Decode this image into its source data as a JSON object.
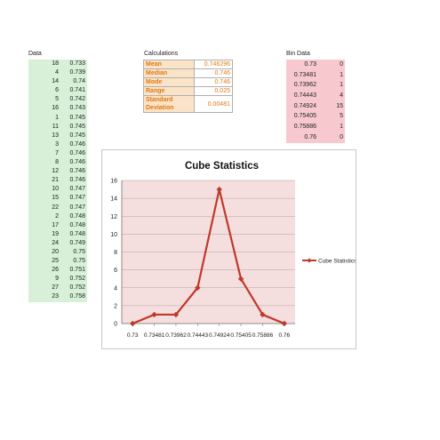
{
  "data_section": {
    "title": "Data",
    "rows": [
      [
        "18",
        "0.733"
      ],
      [
        "4",
        "0.739"
      ],
      [
        "14",
        "0.74"
      ],
      [
        "6",
        "0.741"
      ],
      [
        "5",
        "0.742"
      ],
      [
        "16",
        "0.743"
      ],
      [
        "1",
        "0.745"
      ],
      [
        "11",
        "0.745"
      ],
      [
        "13",
        "0.745"
      ],
      [
        "3",
        "0.746"
      ],
      [
        "7",
        "0.746"
      ],
      [
        "8",
        "0.746"
      ],
      [
        "12",
        "0.746"
      ],
      [
        "21",
        "0.746"
      ],
      [
        "10",
        "0.747"
      ],
      [
        "15",
        "0.747"
      ],
      [
        "22",
        "0.747"
      ],
      [
        "2",
        "0.748"
      ],
      [
        "17",
        "0.748"
      ],
      [
        "19",
        "0.748"
      ],
      [
        "24",
        "0.749"
      ],
      [
        "20",
        "0.75"
      ],
      [
        "25",
        "0.75"
      ],
      [
        "26",
        "0.751"
      ],
      [
        "9",
        "0.752"
      ],
      [
        "27",
        "0.752"
      ],
      [
        "23",
        "0.758"
      ]
    ]
  },
  "calc_section": {
    "title": "Calculations",
    "rows": [
      {
        "label": "Mean",
        "value": "0.746296"
      },
      {
        "label": "Median",
        "value": "0.746"
      },
      {
        "label": "Mode",
        "value": "0.746"
      },
      {
        "label": "Range",
        "value": "0.025"
      },
      {
        "label": "Standard Deviation",
        "value": "0.00481"
      }
    ]
  },
  "bin_section": {
    "title": "Bin Data",
    "rows": [
      [
        "0.73",
        "0"
      ],
      [
        "0.73481",
        "1"
      ],
      [
        "0.73962",
        "1"
      ],
      [
        "0.74443",
        "4"
      ],
      [
        "0.74924",
        "15"
      ],
      [
        "0.75405",
        "5"
      ],
      [
        "0.75886",
        "1"
      ],
      [
        "0.76",
        "0"
      ]
    ]
  },
  "chart_data": {
    "type": "line",
    "title": "Cube Statistics",
    "categories": [
      "0.73",
      "0.73481",
      "0.73962",
      "0.74443",
      "0.74924",
      "0.75405",
      "0.75886",
      "0.76"
    ],
    "series": [
      {
        "name": "Cube Statistics",
        "values": [
          0,
          1,
          1,
          4,
          15,
          5,
          1,
          0
        ],
        "color": "#c0392b"
      }
    ],
    "ylim": [
      0,
      16
    ],
    "yticks": [
      0,
      2,
      4,
      6,
      8,
      10,
      12,
      14,
      16
    ],
    "grid": true,
    "legend": "right",
    "plot_background": "#f4dede"
  }
}
